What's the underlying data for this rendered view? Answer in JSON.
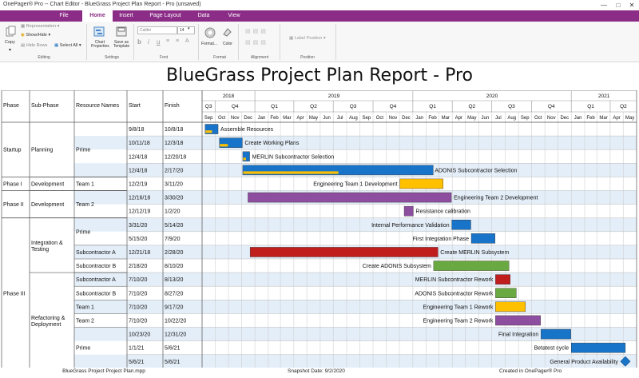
{
  "window": {
    "title": "OnePager® Pro --   Chart Editor - BlueGrass Project Plan Report - Pro (unsaved)"
  },
  "tabs": [
    {
      "label": "File",
      "active": false
    },
    {
      "label": "Home",
      "active": true
    },
    {
      "label": "Insert",
      "active": false
    },
    {
      "label": "Page Layout",
      "active": false
    },
    {
      "label": "Data",
      "active": false
    },
    {
      "label": "View",
      "active": false
    }
  ],
  "ribbon": {
    "copy": "Copy",
    "representation": "Representation",
    "show_hide": "Show/Hide",
    "hide_rows": "Hide Rows",
    "select_all": "Select All",
    "chart_properties": "Chart Properties",
    "save_as_template": "Save as Template",
    "font_name": "Calibri",
    "font_size": "14",
    "format": "Format...",
    "color": "Color",
    "label_position": "Label Position",
    "groups": {
      "editing": "Editing",
      "settings": "Settings",
      "font": "Font",
      "format": "Format",
      "alignment": "Alignment",
      "position": "Position"
    }
  },
  "report_title": "BlueGrass Project Plan Report - Pro",
  "columns": {
    "phase": "Phase",
    "subphase": "Sub-Phase",
    "resource": "Resource Names",
    "start": "Start",
    "finish": "Finish"
  },
  "timeline": {
    "years": [
      {
        "label": "2018",
        "from": "2018-07-01",
        "to": "2019-01-01"
      },
      {
        "label": "2019",
        "from": "2019-01-01",
        "to": "2020-01-01"
      },
      {
        "label": "2020",
        "from": "2020-01-01",
        "to": "2021-01-01"
      },
      {
        "label": "2021",
        "from": "2021-01-01",
        "to": "2021-06-01"
      }
    ],
    "quarters": [
      {
        "label": "Q3",
        "from": "2018-09-01",
        "to": "2018-10-01"
      },
      {
        "label": "Q4",
        "from": "2018-10-01",
        "to": "2019-01-01"
      },
      {
        "label": "Q1",
        "from": "2019-01-01",
        "to": "2019-04-01"
      },
      {
        "label": "Q2",
        "from": "2019-04-01",
        "to": "2019-07-01"
      },
      {
        "label": "Q3",
        "from": "2019-07-01",
        "to": "2019-10-01"
      },
      {
        "label": "Q4",
        "from": "2019-10-01",
        "to": "2020-01-01"
      },
      {
        "label": "Q1",
        "from": "2020-01-01",
        "to": "2020-04-01"
      },
      {
        "label": "Q2",
        "from": "2020-04-01",
        "to": "2020-07-01"
      },
      {
        "label": "Q3",
        "from": "2020-07-01",
        "to": "2020-10-01"
      },
      {
        "label": "Q4",
        "from": "2020-10-01",
        "to": "2021-01-01"
      },
      {
        "label": "Q1",
        "from": "2021-01-01",
        "to": "2021-04-01"
      },
      {
        "label": "Q2",
        "from": "2021-04-01",
        "to": "2021-06-01"
      }
    ],
    "months": [
      "Sep",
      "Oct",
      "Nov",
      "Dec",
      "Jan",
      "Feb",
      "Mar",
      "Apr",
      "May",
      "Jun",
      "Jul",
      "Aug",
      "Sep",
      "Oct",
      "Nov",
      "Dec",
      "Jan",
      "Feb",
      "Mar",
      "Apr",
      "May",
      "Jun",
      "Jul",
      "Aug",
      "Sep",
      "Oct",
      "Nov",
      "Dec",
      "Jan",
      "Feb",
      "Mar",
      "Apr",
      "May"
    ]
  },
  "groups": [
    {
      "phase": "Startup",
      "subphases": [
        {
          "name": "Planning",
          "resources": [
            {
              "name": "Prime",
              "rows": [
                0,
                1,
                2,
                3
              ]
            }
          ]
        }
      ]
    },
    {
      "phase": "Phase I",
      "subphases": [
        {
          "name": "Development",
          "resources": [
            {
              "name": "Team 1",
              "rows": [
                4
              ]
            }
          ]
        }
      ]
    },
    {
      "phase": "Phase II",
      "subphases": [
        {
          "name": "Development",
          "resources": [
            {
              "name": "Team 2",
              "rows": [
                5,
                6
              ]
            }
          ]
        }
      ]
    },
    {
      "phase": "Phase III",
      "subphases": [
        {
          "name": "Integration & Testing",
          "resources": [
            {
              "name": "Prime",
              "rows": [
                7,
                8
              ]
            },
            {
              "name": "Subcontractor A",
              "rows": [
                9
              ]
            },
            {
              "name": "Subcontractor B",
              "rows": [
                10
              ]
            }
          ]
        },
        {
          "name": "Refactoring & Deployment",
          "resources": [
            {
              "name": "Subcontractor A",
              "rows": [
                11
              ]
            },
            {
              "name": "Subcontractor B",
              "rows": [
                12
              ]
            },
            {
              "name": "Team 1",
              "rows": [
                13
              ]
            },
            {
              "name": "Team 2",
              "rows": [
                14
              ]
            },
            {
              "name": "Prime",
              "rows": [
                15,
                16,
                17
              ]
            }
          ]
        }
      ]
    }
  ],
  "colors": {
    "blue": "#1874c8",
    "yellow": "#ffc000",
    "purple": "#8e4ea0",
    "red": "#c01d1d",
    "green": "#6aa842",
    "row_alt": "#e4eef8",
    "tab_purple": "#8b2c86"
  },
  "tasks": [
    {
      "start": "9/8/18",
      "finish": "10/8/18",
      "name": "Assemble Resources",
      "color": "blue",
      "progress": 0.5,
      "label_side": "right"
    },
    {
      "start": "10/11/18",
      "finish": "12/3/18",
      "name": "Create Working Plans",
      "color": "blue",
      "progress": 0.35,
      "label_side": "right"
    },
    {
      "start": "12/4/18",
      "finish": "12/20/18",
      "name": "MERLIN Subcontractor Selection",
      "color": "blue",
      "progress": 0.4,
      "label_side": "right"
    },
    {
      "start": "12/4/18",
      "finish": "2/17/20",
      "name": "ADONIS Subcontractor Selection",
      "color": "blue",
      "progress": 0.5,
      "label_side": "inside-right"
    },
    {
      "start": "12/2/19",
      "finish": "3/11/20",
      "name": "Engineering Team 1 Development",
      "color": "yellow",
      "progress": 0,
      "label_side": "left"
    },
    {
      "start": "12/16/18",
      "finish": "3/30/20",
      "name": "Engineering Team 2 Development",
      "color": "purple",
      "progress": 0,
      "label_side": "right"
    },
    {
      "start": "12/12/19",
      "finish": "1/2/20",
      "name": "Resistance calibration",
      "color": "purple",
      "progress": 0,
      "label_side": "right"
    },
    {
      "start": "3/31/20",
      "finish": "5/14/20",
      "name": "Internal Performance Validation",
      "color": "blue",
      "progress": 0,
      "label_side": "left"
    },
    {
      "start": "5/15/20",
      "finish": "7/9/20",
      "name": "First Integration Phase",
      "color": "blue",
      "progress": 0,
      "label_side": "left"
    },
    {
      "start": "12/21/18",
      "finish": "2/28/20",
      "name": "Create MERLIN Subsystem",
      "color": "red",
      "progress": 0,
      "label_side": "right"
    },
    {
      "start": "2/18/20",
      "finish": "8/10/20",
      "name": "Create ADONIS Subsystem",
      "color": "green",
      "progress": 0,
      "label_side": "left"
    },
    {
      "start": "7/10/20",
      "finish": "8/13/20",
      "name": "MERLIN Subcontractor Rework",
      "color": "red",
      "progress": 0,
      "label_side": "left"
    },
    {
      "start": "7/10/20",
      "finish": "8/27/20",
      "name": "ADONIS Subcontractor Rework",
      "color": "green",
      "progress": 0,
      "label_side": "left"
    },
    {
      "start": "7/10/20",
      "finish": "9/17/20",
      "name": "Engineering Team 1 Rework",
      "color": "yellow",
      "progress": 0,
      "label_side": "left"
    },
    {
      "start": "7/10/20",
      "finish": "10/22/20",
      "name": "Engineering Team 2 Rework",
      "color": "purple",
      "progress": 0,
      "label_side": "left"
    },
    {
      "start": "10/23/20",
      "finish": "12/31/20",
      "name": "Final Integration",
      "color": "blue",
      "progress": 0,
      "label_side": "left"
    },
    {
      "start": "1/1/21",
      "finish": "5/6/21",
      "name": "Betatest cycle",
      "color": "blue",
      "progress": 0,
      "label_side": "left"
    },
    {
      "start": "5/6/21",
      "finish": "5/6/21",
      "name": "General Product Availability",
      "color": "blue",
      "progress": 0,
      "label_side": "left",
      "milestone": true
    }
  ],
  "footer": {
    "file": "BlueGrass Project Project Plan.mpp",
    "snapshot": "Snapshot Date: 9/2/2020",
    "created": "Created in OnePager® Pro"
  }
}
